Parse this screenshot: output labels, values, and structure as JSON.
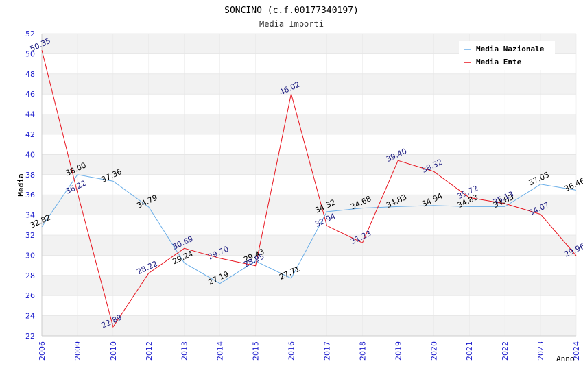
{
  "chart_data": {
    "type": "line",
    "title": "SONCINO (c.f.00177340197)",
    "subtitle": "Media Importi",
    "xlabel": "Anno",
    "ylabel": "Media",
    "ylim": [
      22,
      52
    ],
    "yticks": [
      "22",
      "24",
      "26",
      "28",
      "30",
      "32",
      "34",
      "36",
      "38",
      "40",
      "42",
      "44",
      "46",
      "48",
      "50",
      "52"
    ],
    "categories": [
      "2006",
      "2009",
      "2010",
      "2012",
      "2013",
      "2014",
      "2015",
      "2016",
      "2017",
      "2018",
      "2019",
      "2020",
      "2021",
      "2022",
      "2023",
      "2024"
    ],
    "legend_position": "top-right",
    "series": [
      {
        "name": "Media Nazionale",
        "color": "#6aaee8",
        "label_color": "#000000",
        "values": [
          32.82,
          38.0,
          37.36,
          34.79,
          29.24,
          27.19,
          29.43,
          27.71,
          34.32,
          34.68,
          34.83,
          34.94,
          34.83,
          34.83,
          37.05,
          36.46
        ],
        "labels": [
          "32.82",
          "38.00",
          "37.36",
          "34.79",
          "29.24",
          "27.19",
          "29.43",
          "27.71",
          "34.32",
          "34.68",
          "34.83",
          "34.94",
          "34.83",
          "34.83",
          "37.05",
          "36.46"
        ]
      },
      {
        "name": "Media Ente",
        "color": "#e8141e",
        "label_color": "#1a1a80",
        "values": [
          50.35,
          36.22,
          22.89,
          28.22,
          30.69,
          29.7,
          28.95,
          46.02,
          32.94,
          31.23,
          39.4,
          38.32,
          35.72,
          35.13,
          34.07,
          29.96
        ],
        "labels": [
          "50.35",
          "36.22",
          "22.89",
          "28.22",
          "30.69",
          "29.70",
          "28.95",
          "46.02",
          "32.94",
          "31.23",
          "39.40",
          "38.32",
          "35.72",
          "35.13",
          "34.07",
          "29.96"
        ]
      }
    ]
  },
  "colors": {
    "axis_text": "#1a1acc",
    "band": "#f2f2f2",
    "grid": "#dddddd"
  }
}
